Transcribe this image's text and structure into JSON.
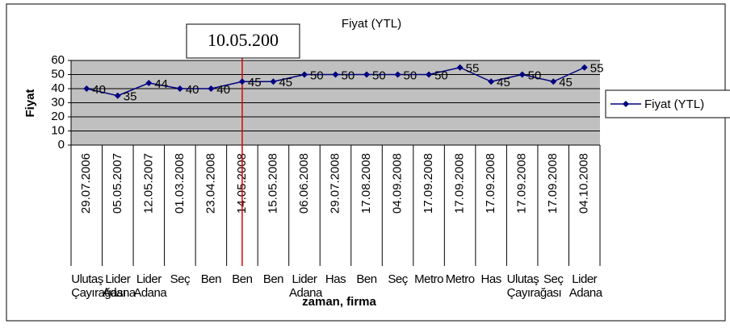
{
  "chart_data": {
    "type": "line",
    "title": "Fiyat (YTL)",
    "y_label": "Fiyat",
    "x_label": "zaman, firma",
    "annotation": "10.05.200",
    "categories": [
      "29.07.2006",
      "05.05.2007",
      "12.05.2007",
      "01.03.2008",
      "23.04.2008",
      "14.05.2008",
      "15.05.2008",
      "06.06.2008",
      "29.07.2008",
      "17.08.2008",
      "04.09.2008",
      "17.09.2008",
      "17.09.2008",
      "17.09.2008",
      "17.09.2008",
      "17.09.2008",
      "04.10.2008"
    ],
    "firms": [
      "Ulutaş Çayırağası",
      "Lider Adana",
      "Lider Adana",
      "Seç",
      "Ben",
      "Ben",
      "Ben",
      "Lider Adana",
      "Has",
      "Ben",
      "Seç",
      "Metro",
      "Metro",
      "Has",
      "Ulutaş Çayırağası",
      "Seç",
      "Lider Adana"
    ],
    "series": [
      {
        "name": "Fiyat (YTL)",
        "color": "#000080",
        "values": [
          40,
          35,
          44,
          40,
          40,
          45,
          45,
          50,
          50,
          50,
          50,
          50,
          55,
          45,
          50,
          45,
          55
        ]
      }
    ],
    "ylim": [
      0,
      60
    ],
    "yticks": [
      0,
      10,
      20,
      30,
      40,
      50,
      60
    ],
    "grid": true,
    "legend": "right"
  }
}
